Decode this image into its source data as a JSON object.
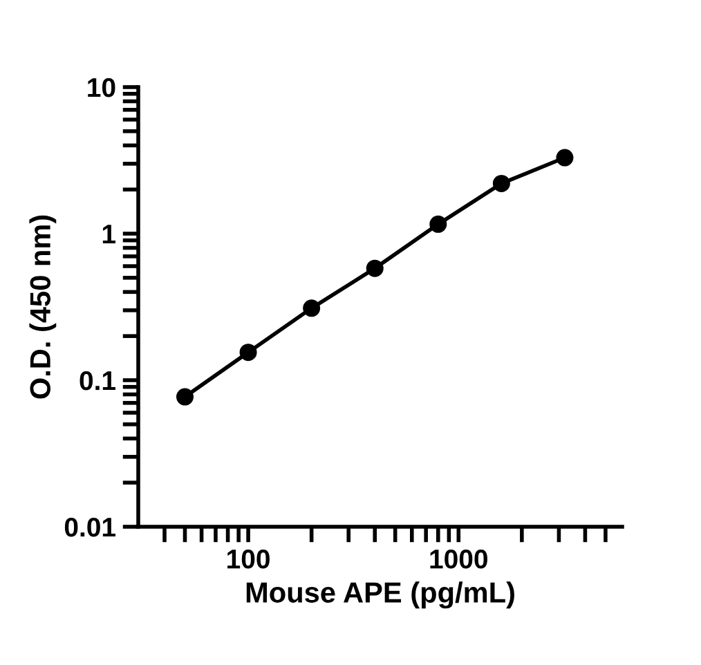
{
  "chart_data": {
    "type": "line",
    "xlabel": "Mouse APE (pg/mL)",
    "ylabel": "O.D. (450 nm)",
    "log": "xy",
    "marker": "circle",
    "line_style": "solid",
    "grid": false,
    "legend": false,
    "x": [
      50,
      100,
      200,
      400,
      800,
      1600,
      3200
    ],
    "series": [
      {
        "color": "#000000",
        "values": [
          0.077,
          0.155,
          0.31,
          0.58,
          1.16,
          2.2,
          3.3
        ]
      }
    ],
    "xlim": [
      30,
      6000
    ],
    "ylim": [
      0.01,
      10
    ],
    "xticks": [
      {
        "value": 40,
        "label": null
      },
      {
        "value": 50,
        "label": null
      },
      {
        "value": 60,
        "label": null
      },
      {
        "value": 70,
        "label": null
      },
      {
        "value": 80,
        "label": null
      },
      {
        "value": 90,
        "label": null
      },
      100,
      {
        "value": 200,
        "label": null
      },
      {
        "value": 300,
        "label": null
      },
      {
        "value": 400,
        "label": null
      },
      {
        "value": 500,
        "label": null
      },
      {
        "value": 600,
        "label": null
      },
      {
        "value": 700,
        "label": null
      },
      {
        "value": 800,
        "label": null
      },
      {
        "value": 900,
        "label": null
      },
      1000,
      {
        "value": 2000,
        "label": null
      },
      {
        "value": 3000,
        "label": null
      },
      {
        "value": 4000,
        "label": null
      },
      {
        "value": 5000,
        "label": null
      }
    ],
    "yticks": [
      0.01,
      {
        "value": 0.02,
        "label": null
      },
      {
        "value": 0.03,
        "label": null
      },
      {
        "value": 0.04,
        "label": null
      },
      {
        "value": 0.05,
        "label": null
      },
      {
        "value": 0.06,
        "label": null
      },
      {
        "value": 0.07,
        "label": null
      },
      {
        "value": 0.08,
        "label": null
      },
      {
        "value": 0.09,
        "label": null
      },
      0.1,
      {
        "value": 0.2,
        "label": null
      },
      {
        "value": 0.3,
        "label": null
      },
      {
        "value": 0.4,
        "label": null
      },
      {
        "value": 0.5,
        "label": null
      },
      {
        "value": 0.6,
        "label": null
      },
      {
        "value": 0.7,
        "label": null
      },
      {
        "value": 0.8,
        "label": null
      },
      {
        "value": 0.9,
        "label": null
      },
      1,
      {
        "value": 2,
        "label": null
      },
      {
        "value": 3,
        "label": null
      },
      {
        "value": 4,
        "label": null
      },
      {
        "value": 5,
        "label": null
      },
      {
        "value": 6,
        "label": null
      },
      {
        "value": 7,
        "label": null
      },
      {
        "value": 8,
        "label": null
      },
      {
        "value": 9,
        "label": null
      },
      10
    ]
  }
}
